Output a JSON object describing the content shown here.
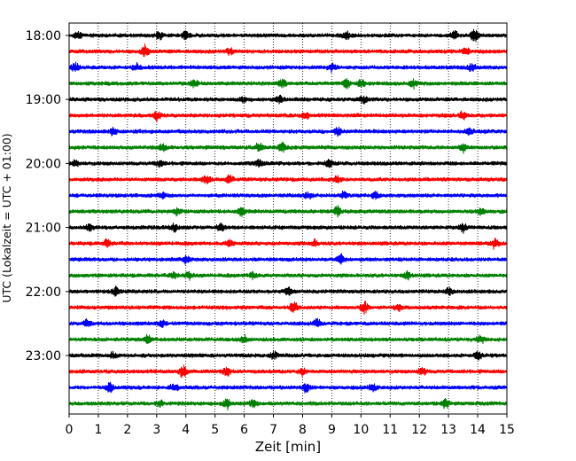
{
  "chart_data": {
    "type": "line",
    "title": "",
    "xlabel": "Zeit  [min]",
    "ylabel": "UTC (Lokalzeit = UTC + 01:00)",
    "xlim": [
      0,
      15
    ],
    "x_ticks": [
      "0",
      "1",
      "2",
      "3",
      "4",
      "5",
      "6",
      "7",
      "8",
      "9",
      "10",
      "11",
      "12",
      "13",
      "14",
      "15"
    ],
    "y_ticks": [
      "18:00",
      "19:00",
      "20:00",
      "21:00",
      "22:00",
      "23:00"
    ],
    "trace_interval_min": 15,
    "start_time": "18:00",
    "grid": {
      "vertical": true,
      "horizontal": false
    },
    "colors": [
      "#000000",
      "#ff0000",
      "#0000ff",
      "#008000"
    ],
    "traces": [
      {
        "start": "18:00",
        "color": "#000000",
        "events": [
          [
            0.3,
            0.8
          ],
          [
            3.1,
            0.9
          ],
          [
            4.0,
            1.0
          ],
          [
            9.5,
            0.9
          ],
          [
            13.2,
            1.3
          ],
          [
            13.9,
            1.7
          ]
        ]
      },
      {
        "start": "18:15",
        "color": "#ff0000",
        "events": [
          [
            2.6,
            1.4
          ],
          [
            5.5,
            0.8
          ],
          [
            13.6,
            1.0
          ]
        ]
      },
      {
        "start": "18:30",
        "color": "#0000ff",
        "events": [
          [
            0.2,
            1.0
          ],
          [
            2.3,
            0.9
          ],
          [
            9.0,
            1.0
          ],
          [
            13.8,
            1.0
          ]
        ]
      },
      {
        "start": "18:45",
        "color": "#008000",
        "events": [
          [
            4.3,
            0.9
          ],
          [
            7.3,
            1.0
          ],
          [
            9.5,
            1.2
          ],
          [
            10.0,
            1.0
          ],
          [
            11.8,
            0.9
          ]
        ]
      },
      {
        "start": "19:00",
        "color": "#000000",
        "events": [
          [
            6.0,
            0.8
          ],
          [
            7.2,
            1.0
          ],
          [
            10.1,
            1.1
          ]
        ]
      },
      {
        "start": "19:15",
        "color": "#ff0000",
        "events": [
          [
            3.0,
            1.2
          ],
          [
            8.1,
            0.9
          ],
          [
            13.5,
            1.0
          ]
        ]
      },
      {
        "start": "19:30",
        "color": "#0000ff",
        "events": [
          [
            1.5,
            0.9
          ],
          [
            9.2,
            1.1
          ],
          [
            13.7,
            1.0
          ]
        ]
      },
      {
        "start": "19:45",
        "color": "#008000",
        "events": [
          [
            3.2,
            0.9
          ],
          [
            6.5,
            1.0
          ],
          [
            7.3,
            1.2
          ],
          [
            13.5,
            1.0
          ]
        ]
      },
      {
        "start": "20:00",
        "color": "#000000",
        "events": [
          [
            0.2,
            0.8
          ],
          [
            3.1,
            0.9
          ],
          [
            6.5,
            1.0
          ],
          [
            8.9,
            0.9
          ]
        ]
      },
      {
        "start": "20:15",
        "color": "#ff0000",
        "events": [
          [
            4.7,
            1.3
          ],
          [
            5.5,
            1.0
          ],
          [
            9.2,
            0.9
          ]
        ]
      },
      {
        "start": "20:30",
        "color": "#0000ff",
        "events": [
          [
            3.2,
            0.8
          ],
          [
            8.2,
            0.9
          ],
          [
            9.4,
            0.8
          ],
          [
            10.5,
            1.0
          ]
        ]
      },
      {
        "start": "20:45",
        "color": "#008000",
        "events": [
          [
            3.7,
            0.9
          ],
          [
            5.9,
            1.0
          ],
          [
            9.2,
            1.5
          ],
          [
            14.1,
            0.9
          ]
        ]
      },
      {
        "start": "21:00",
        "color": "#000000",
        "events": [
          [
            0.7,
            0.8
          ],
          [
            3.6,
            1.0
          ],
          [
            5.2,
            0.9
          ],
          [
            13.5,
            0.9
          ]
        ]
      },
      {
        "start": "21:15",
        "color": "#ff0000",
        "events": [
          [
            1.3,
            0.9
          ],
          [
            5.5,
            1.0
          ],
          [
            8.4,
            0.8
          ],
          [
            14.6,
            1.2
          ]
        ]
      },
      {
        "start": "21:30",
        "color": "#0000ff",
        "events": [
          [
            4.0,
            0.9
          ],
          [
            9.3,
            1.0
          ]
        ]
      },
      {
        "start": "21:45",
        "color": "#008000",
        "events": [
          [
            3.6,
            0.9
          ],
          [
            4.1,
            1.0
          ],
          [
            6.3,
            0.9
          ],
          [
            11.6,
            1.0
          ]
        ]
      },
      {
        "start": "22:00",
        "color": "#000000",
        "events": [
          [
            1.6,
            1.2
          ],
          [
            7.5,
            0.9
          ],
          [
            13.0,
            0.9
          ]
        ]
      },
      {
        "start": "22:15",
        "color": "#ff0000",
        "events": [
          [
            7.7,
            1.4
          ],
          [
            10.1,
            1.6
          ],
          [
            11.3,
            0.9
          ]
        ]
      },
      {
        "start": "22:30",
        "color": "#0000ff",
        "events": [
          [
            0.6,
            0.9
          ],
          [
            3.2,
            0.8
          ],
          [
            8.5,
            1.0
          ]
        ]
      },
      {
        "start": "22:45",
        "color": "#008000",
        "events": [
          [
            2.7,
            0.9
          ],
          [
            6.0,
            1.0
          ],
          [
            14.1,
            1.1
          ]
        ]
      },
      {
        "start": "23:00",
        "color": "#000000",
        "events": [
          [
            1.5,
            0.8
          ],
          [
            7.0,
            0.9
          ],
          [
            14.0,
            1.0
          ]
        ]
      },
      {
        "start": "23:15",
        "color": "#ff0000",
        "events": [
          [
            3.9,
            1.3
          ],
          [
            5.4,
            1.2
          ],
          [
            8.0,
            0.9
          ],
          [
            12.1,
            1.0
          ]
        ]
      },
      {
        "start": "23:30",
        "color": "#0000ff",
        "events": [
          [
            1.4,
            1.0
          ],
          [
            3.6,
            1.1
          ],
          [
            8.1,
            1.2
          ],
          [
            10.4,
            0.9
          ]
        ]
      },
      {
        "start": "23:45",
        "color": "#008000",
        "events": [
          [
            3.1,
            0.8
          ],
          [
            5.4,
            1.2
          ],
          [
            6.3,
            0.9
          ],
          [
            12.9,
            1.3
          ]
        ]
      }
    ]
  }
}
